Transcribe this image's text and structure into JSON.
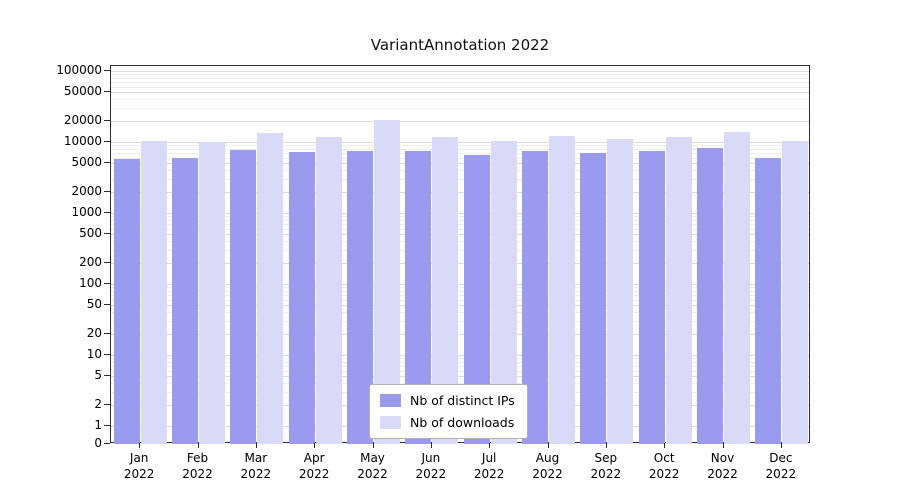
{
  "chart_data": {
    "type": "bar",
    "title": "VariantAnnotation 2022",
    "categories": [
      "Jan",
      "Feb",
      "Mar",
      "Apr",
      "May",
      "Jun",
      "Jul",
      "Aug",
      "Sep",
      "Oct",
      "Nov",
      "Dec"
    ],
    "x_year": "2022",
    "series": [
      {
        "name": "Nb of distinct IPs",
        "color": "#9a9aee",
        "values": [
          5800,
          5900,
          7800,
          7200,
          7400,
          7400,
          6500,
          7500,
          6900,
          7500,
          8200,
          5900
        ]
      },
      {
        "name": "Nb of downloads",
        "color": "#d9d9f8",
        "values": [
          10200,
          10100,
          13500,
          11800,
          20500,
          11600,
          10400,
          12000,
          11200,
          11900,
          14000,
          10200
        ]
      }
    ],
    "yscale": "log",
    "yticks": [
      0,
      1,
      2,
      5,
      10,
      20,
      50,
      100,
      200,
      500,
      1000,
      2000,
      5000,
      10000,
      20000,
      50000,
      100000
    ],
    "ylim": [
      0,
      100000
    ],
    "grid": true,
    "legend_position": "bottom-center"
  }
}
